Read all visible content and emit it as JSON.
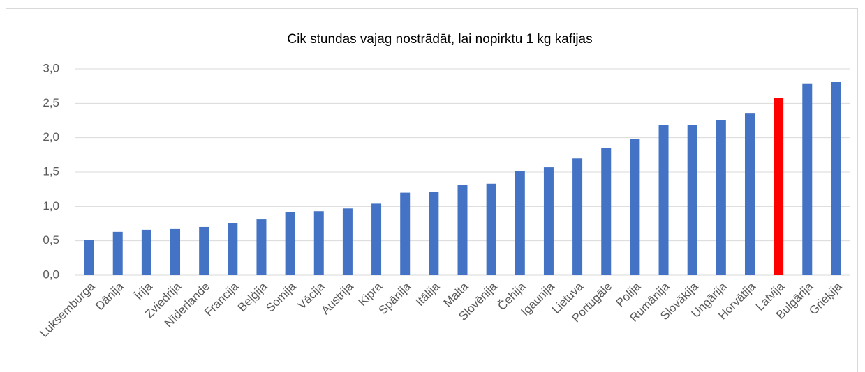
{
  "chart_data": {
    "type": "bar",
    "title": "Cik stundas vajag nostrādāt, lai nopirktu 1 kg kafijas",
    "categories": [
      "Luksemburga",
      "Dānija",
      "Īrija",
      "Zviedrija",
      "Nīderlande",
      "Francija",
      "Beļģija",
      "Somija",
      "Vācija",
      "Austrija",
      "Kipra",
      "Spānija",
      "Itālija",
      "Malta",
      "Slovēnija",
      "Čehija",
      "Igaunija",
      "Lietuva",
      "Portugāle",
      "Polija",
      "Rumānija",
      "Slovākija",
      "Ungārija",
      "Horvātija",
      "Latvija",
      "Bulgārija",
      "Grieķija"
    ],
    "values": [
      0.51,
      0.63,
      0.66,
      0.67,
      0.7,
      0.76,
      0.81,
      0.92,
      0.93,
      0.97,
      1.04,
      1.2,
      1.21,
      1.31,
      1.33,
      1.52,
      1.57,
      1.7,
      1.85,
      1.98,
      2.18,
      2.18,
      2.26,
      2.36,
      2.58,
      2.79,
      2.81
    ],
    "colors": [
      "#4472c4",
      "#4472c4",
      "#4472c4",
      "#4472c4",
      "#4472c4",
      "#4472c4",
      "#4472c4",
      "#4472c4",
      "#4472c4",
      "#4472c4",
      "#4472c4",
      "#4472c4",
      "#4472c4",
      "#4472c4",
      "#4472c4",
      "#4472c4",
      "#4472c4",
      "#4472c4",
      "#4472c4",
      "#4472c4",
      "#4472c4",
      "#4472c4",
      "#4472c4",
      "#4472c4",
      "#ff0000",
      "#4472c4",
      "#4472c4"
    ],
    "ylim": [
      0,
      3
    ],
    "yticks": [
      {
        "value": 0,
        "label": "0,0"
      },
      {
        "value": 0.5,
        "label": "0,5"
      },
      {
        "value": 1,
        "label": "1,0"
      },
      {
        "value": 1.5,
        "label": "1,5"
      },
      {
        "value": 2,
        "label": "2,0"
      },
      {
        "value": 2.5,
        "label": "2,5"
      },
      {
        "value": 3,
        "label": "3,0"
      }
    ],
    "grid": true
  }
}
